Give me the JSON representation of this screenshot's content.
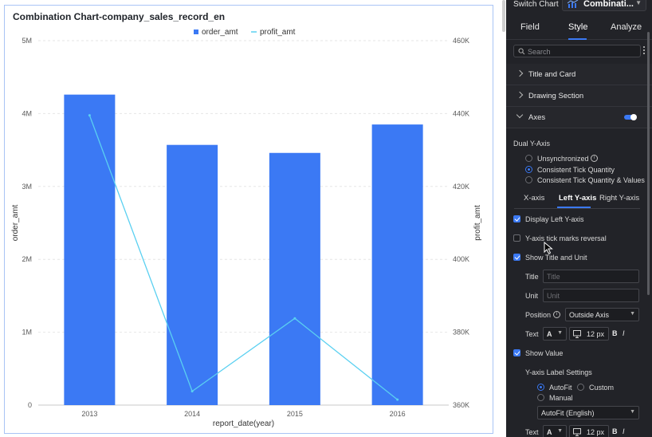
{
  "chart": {
    "title": "Combination Chart-company_sales_record_en",
    "legend": [
      "order_amt",
      "profit_amt"
    ],
    "x_label": "report_date(year)",
    "y_left_label": "order_amt",
    "y_right_label": "profit_amt",
    "x_ticks": [
      "2013",
      "2014",
      "2015",
      "2016"
    ],
    "y_left_ticks": [
      "0",
      "1M",
      "2M",
      "3M",
      "4M",
      "5M"
    ],
    "y_right_ticks": [
      "360K",
      "380K",
      "400K",
      "420K",
      "440K",
      "460K"
    ]
  },
  "chart_data": {
    "type": "bar",
    "title": "Combination Chart-company_sales_record_en",
    "categories": [
      "2013",
      "2014",
      "2015",
      "2016"
    ],
    "xlabel": "report_date(year)",
    "series": [
      {
        "name": "order_amt",
        "type": "bar",
        "axis": "left",
        "values": [
          4260000,
          3570000,
          3460000,
          3850000
        ],
        "color": "#3b79f4"
      },
      {
        "name": "profit_amt",
        "type": "line",
        "axis": "right",
        "values": [
          439500,
          363800,
          383800,
          361500
        ],
        "color": "#5ad0f1"
      }
    ],
    "ylabel": "order_amt",
    "ylim": [
      0,
      5000000
    ],
    "y2label": "profit_amt",
    "y2lim": [
      360000,
      460000
    ],
    "grid": true,
    "legend_position": "top-center"
  },
  "panel": {
    "switch_label": "Switch Chart",
    "chart_type": "Combinati...",
    "tabs": [
      "Field",
      "Style",
      "Analyze"
    ],
    "search_placeholder": "Search",
    "sections": [
      "Title and Card",
      "Drawing Section",
      "Axes"
    ],
    "dual_y_axis": {
      "label": "Dual Y-Axis",
      "options": [
        "Unsynchronized",
        "Consistent Tick Quantity",
        "Consistent Tick Quantity & Values"
      ]
    },
    "axis_tabs": [
      "X-axis",
      "Left Y-axis",
      "Right Y-axis"
    ],
    "display_left": "Display Left Y-axis",
    "tick_reversal": "Y-axis tick marks reversal",
    "show_title_unit": "Show Title and Unit",
    "title_label": "Title",
    "title_placeholder": "Title",
    "unit_label": "Unit",
    "unit_placeholder": "Unit",
    "position_label": "Position",
    "position_value": "Outside Axis",
    "text_label": "Text",
    "font_letter": "A",
    "font_size": "12 px",
    "bold": "B",
    "italic": "I",
    "show_value": "Show Value",
    "label_settings": "Y-axis Label Settings",
    "autofit": "AutoFit",
    "custom": "Custom",
    "manual": "Manual",
    "autofit_select": "AutoFit (English)",
    "text_label2": "Text",
    "font_letter2": "A",
    "font_size2": "12 px",
    "bold2": "B",
    "italic2": "I"
  },
  "colors": {
    "accent": "#3b79f4",
    "line": "#5ad0f1",
    "panel_bg": "#222328"
  }
}
